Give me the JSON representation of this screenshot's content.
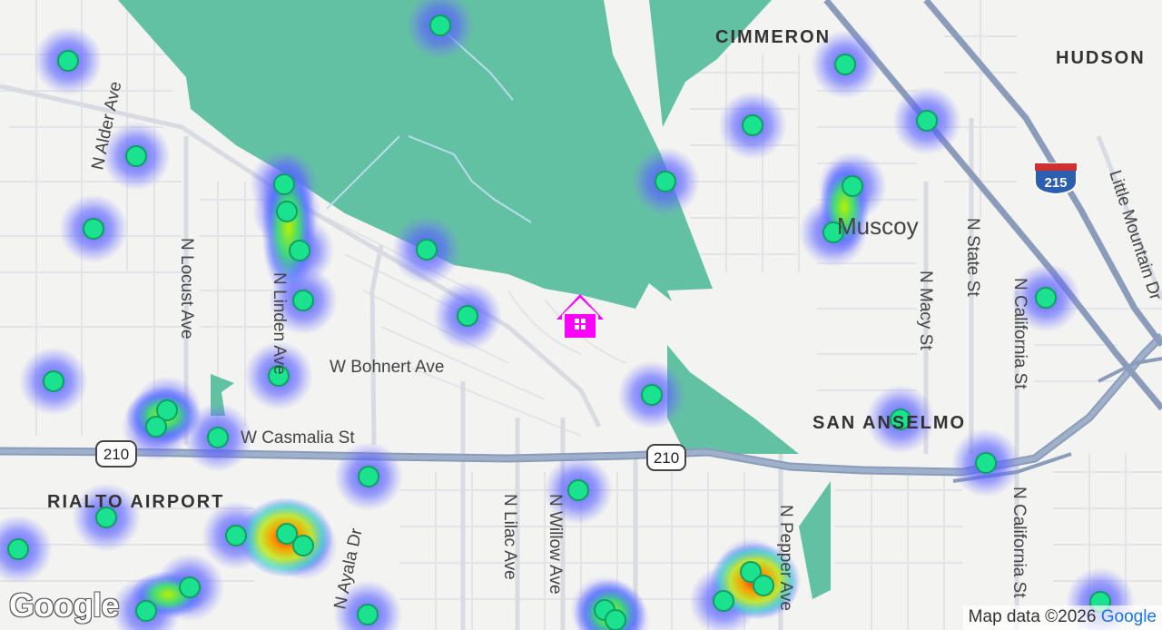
{
  "map": {
    "area_labels": [
      "CIMMERON",
      "HUDSON",
      "SAN ANSELMO",
      "RIALTO AIRPORT"
    ],
    "place_label": "Muscoy",
    "streets": {
      "alder": "N Alder Ave",
      "locust": "N Locust Ave",
      "linden": "N Linden Ave",
      "bohnert": "W Bohnert Ave",
      "casmalia": "W Casmalia St",
      "ayala": "N Ayala Dr",
      "lilac": "N Lilac Ave",
      "willow": "N Willow Ave",
      "pepper": "N Pepper Ave",
      "macy": "N Macy St",
      "state": "N State St",
      "california_north": "N California St",
      "california_south": "N California St",
      "little_mountain": "Little Mountain Dr"
    },
    "shields": {
      "i215": "215",
      "ca210_west": "210",
      "ca210_east": "210"
    },
    "attribution": {
      "text": "Map data ©2026",
      "brand": "Google"
    },
    "logo": "Google",
    "home_marker": "home-icon",
    "colors": {
      "park": "#5fc0a0",
      "highway": "#8a9bb8",
      "road": "#ffffff",
      "marker": "#1be28f",
      "home": "#ff00ff"
    }
  }
}
